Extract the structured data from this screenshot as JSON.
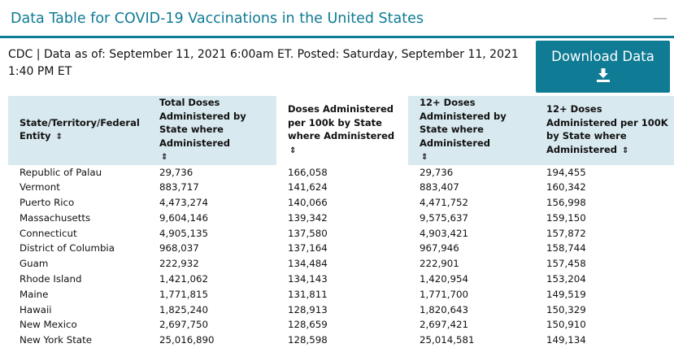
{
  "header": {
    "title": "Data Table for COVID-19 Vaccinations in the United States",
    "collapse_symbol": "—"
  },
  "meta_text": "CDC | Data as of: September 11, 2021 6:00am ET. Posted: Saturday, September 11, 2021 1:40 PM ET",
  "download": {
    "label": "Download Data",
    "icon": "download-icon"
  },
  "table": {
    "sort_symbol": "⇕",
    "columns": [
      "State/Territory/Federal Entity",
      "Total Doses Administered by State where Administered",
      "Doses Administered per 100k by State where Administered",
      "12+ Doses Administered by State where Administered",
      "12+ Doses Administered per 100K by State where Administered"
    ],
    "rows": [
      [
        "Republic of Palau",
        "29,736",
        "166,058",
        "29,736",
        "194,455"
      ],
      [
        "Vermont",
        "883,717",
        "141,624",
        "883,407",
        "160,342"
      ],
      [
        "Puerto Rico",
        "4,473,274",
        "140,066",
        "4,471,752",
        "156,998"
      ],
      [
        "Massachusetts",
        "9,604,146",
        "139,342",
        "9,575,637",
        "159,150"
      ],
      [
        "Connecticut",
        "4,905,135",
        "137,580",
        "4,903,421",
        "157,872"
      ],
      [
        "District of Columbia",
        "968,037",
        "137,164",
        "967,946",
        "158,744"
      ],
      [
        "Guam",
        "222,932",
        "134,484",
        "222,901",
        "157,458"
      ],
      [
        "Rhode Island",
        "1,421,062",
        "134,143",
        "1,420,954",
        "153,204"
      ],
      [
        "Maine",
        "1,771,815",
        "131,811",
        "1,771,700",
        "149,519"
      ],
      [
        "Hawaii",
        "1,825,240",
        "128,913",
        "1,820,643",
        "150,329"
      ],
      [
        "New Mexico",
        "2,697,750",
        "128,659",
        "2,697,421",
        "150,910"
      ],
      [
        "New York State",
        "25,016,890",
        "128,598",
        "25,014,581",
        "149,134"
      ]
    ]
  }
}
